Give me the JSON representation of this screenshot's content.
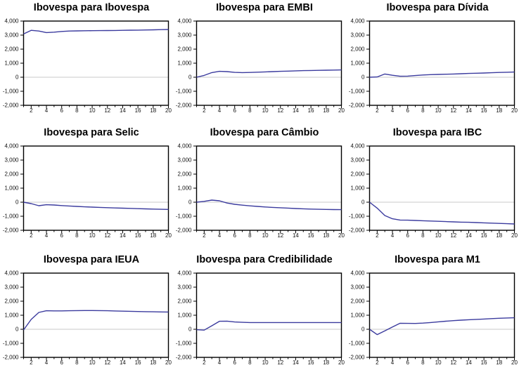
{
  "style": {
    "background": "#ffffff",
    "line_color": "#3b3b9e",
    "zero_line_color": "#c9c9c9",
    "frame_color": "#000000",
    "text_color": "#111111"
  },
  "axes": {
    "ylim": [
      -2000,
      4000
    ],
    "yticks": [
      4000,
      3000,
      2000,
      1000,
      0,
      -1000,
      -2000
    ],
    "ytick_labels": [
      "4,000",
      "3,000",
      "2,000",
      "1,000",
      "0",
      "-1,000",
      "-2,000"
    ],
    "xrange": [
      1,
      20
    ],
    "xtick_major": [
      2,
      4,
      6,
      8,
      10,
      12,
      14,
      16,
      18,
      20
    ],
    "xtick_labels": [
      "2",
      "4",
      "6",
      "8",
      "10",
      "12",
      "14",
      "16",
      "18",
      "20"
    ],
    "grid": "off",
    "zero_line": true
  },
  "chart_data": [
    {
      "type": "line",
      "title": "Ibovespa para Ibovespa",
      "x": [
        1,
        2,
        3,
        4,
        5,
        6,
        7,
        8,
        9,
        10,
        11,
        12,
        13,
        14,
        15,
        16,
        17,
        18,
        19,
        20
      ],
      "values": [
        3080,
        3340,
        3290,
        3180,
        3210,
        3260,
        3290,
        3300,
        3310,
        3315,
        3320,
        3325,
        3330,
        3340,
        3350,
        3355,
        3365,
        3375,
        3390,
        3400
      ]
    },
    {
      "type": "line",
      "title": "Ibovespa para EMBI",
      "x": [
        1,
        2,
        3,
        4,
        5,
        6,
        7,
        8,
        9,
        10,
        11,
        12,
        13,
        14,
        15,
        16,
        17,
        18,
        19,
        20
      ],
      "values": [
        0,
        130,
        330,
        420,
        400,
        345,
        330,
        340,
        360,
        380,
        400,
        420,
        435,
        455,
        470,
        480,
        490,
        500,
        510,
        520
      ]
    },
    {
      "type": "line",
      "title": "Ibovespa para Dívida",
      "x": [
        1,
        2,
        3,
        4,
        5,
        6,
        7,
        8,
        9,
        10,
        11,
        12,
        13,
        14,
        15,
        16,
        17,
        18,
        19,
        20
      ],
      "values": [
        0,
        20,
        230,
        140,
        70,
        80,
        120,
        160,
        185,
        200,
        215,
        230,
        250,
        270,
        285,
        300,
        320,
        340,
        355,
        370
      ]
    },
    {
      "type": "line",
      "title": "Ibovespa para Selic",
      "x": [
        1,
        2,
        3,
        4,
        5,
        6,
        7,
        8,
        9,
        10,
        11,
        12,
        13,
        14,
        15,
        16,
        17,
        18,
        19,
        20
      ],
      "values": [
        0,
        -100,
        -250,
        -180,
        -200,
        -240,
        -270,
        -300,
        -330,
        -350,
        -370,
        -390,
        -410,
        -425,
        -440,
        -460,
        -475,
        -490,
        -505,
        -515
      ]
    },
    {
      "type": "line",
      "title": "Ibovespa para Câmbio",
      "x": [
        1,
        2,
        3,
        4,
        5,
        6,
        7,
        8,
        9,
        10,
        11,
        12,
        13,
        14,
        15,
        16,
        17,
        18,
        19,
        20
      ],
      "values": [
        0,
        60,
        150,
        100,
        -60,
        -150,
        -210,
        -260,
        -300,
        -340,
        -370,
        -395,
        -420,
        -450,
        -470,
        -490,
        -505,
        -515,
        -525,
        -530
      ]
    },
    {
      "type": "line",
      "title": "Ibovespa para IBC",
      "x": [
        1,
        2,
        3,
        4,
        5,
        6,
        7,
        8,
        9,
        10,
        11,
        12,
        13,
        14,
        15,
        16,
        17,
        18,
        19,
        20
      ],
      "values": [
        0,
        -420,
        -950,
        -1180,
        -1270,
        -1280,
        -1300,
        -1320,
        -1340,
        -1360,
        -1380,
        -1400,
        -1420,
        -1430,
        -1450,
        -1470,
        -1490,
        -1510,
        -1530,
        -1550
      ]
    },
    {
      "type": "line",
      "title": "Ibovespa para IEUA",
      "x": [
        1,
        2,
        3,
        4,
        5,
        6,
        7,
        8,
        9,
        10,
        11,
        12,
        13,
        14,
        15,
        16,
        17,
        18,
        19,
        20
      ],
      "values": [
        -50,
        700,
        1200,
        1320,
        1310,
        1310,
        1320,
        1330,
        1335,
        1335,
        1330,
        1320,
        1305,
        1290,
        1280,
        1265,
        1255,
        1245,
        1235,
        1230
      ]
    },
    {
      "type": "line",
      "title": "Ibovespa para Credibilidade",
      "x": [
        1,
        2,
        3,
        4,
        5,
        6,
        7,
        8,
        9,
        10,
        11,
        12,
        13,
        14,
        15,
        16,
        17,
        18,
        19,
        20
      ],
      "values": [
        -30,
        -60,
        250,
        570,
        580,
        520,
        495,
        480,
        478,
        478,
        478,
        478,
        478,
        478,
        478,
        478,
        478,
        478,
        478,
        478
      ]
    },
    {
      "type": "line",
      "title": "Ibovespa para M1",
      "x": [
        1,
        2,
        3,
        4,
        5,
        6,
        7,
        8,
        9,
        10,
        11,
        12,
        13,
        14,
        15,
        16,
        17,
        18,
        19,
        20
      ],
      "values": [
        0,
        -380,
        -110,
        160,
        430,
        420,
        415,
        440,
        480,
        530,
        575,
        615,
        650,
        680,
        705,
        730,
        760,
        785,
        805,
        820
      ]
    }
  ]
}
